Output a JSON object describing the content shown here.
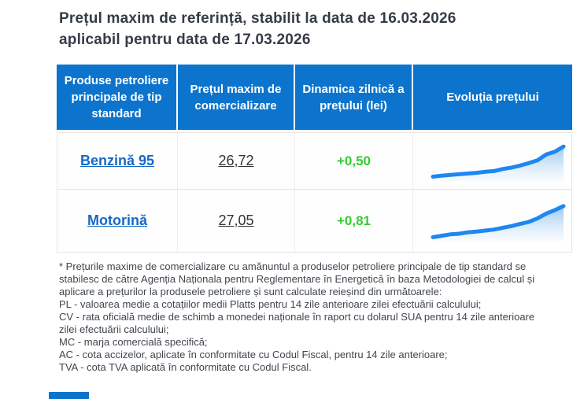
{
  "page": {
    "title_line1": "Prețul maxim de referință, stabilit la data de 16.03.2026",
    "title_line2": "aplicabil pentru data de 17.03.2026"
  },
  "table": {
    "headers": [
      "Produse petroliere principale de tip standard",
      "Prețul maxim de comercializare",
      "Dinamica zilnică a prețului (lei)",
      "Evoluția prețului"
    ],
    "rows": [
      {
        "product": "Benzină 95",
        "price": "26,72",
        "change": "+0,50"
      },
      {
        "product": "Motorină",
        "price": "27,05",
        "change": "+0,81"
      }
    ]
  },
  "footnotes": [
    "* Prețurile maxime de comercializare cu amănuntul a produselor petroliere principale de tip standard se stabilesc de către Agenția Naționala pentru Reglementare în Energetică în baza Metodologiei de calcul și aplicare a prețurilor la produsele petroliere și sunt calculate reieșind din următoarele:",
    "PL - valoarea medie a cotațiilor medii Platts pentru 14 zile anterioare zilei efectuării calculului;",
    "CV - rata oficială medie de schimb a monedei naționale în raport cu dolarul SUA pentru 14 zile anterioare zilei efectuării calculului;",
    "MC - marja comercială specifică;",
    "AC - cota accizelor, aplicate în conformitate cu Codul Fiscal, pentru 14 zile anterioare;",
    "TVA - cota TVA aplicată în conformitate cu Codul Fiscal."
  ],
  "colors": {
    "header_blue": "#0c74cc",
    "link_blue": "#1668c4",
    "positive_green": "#32cd32",
    "title_color": "#353c47",
    "spark_line": "#1e87f0",
    "spark_fill_top": "#97c8f0",
    "spark_fill_bottom": "#eef6fd"
  },
  "chart_data": [
    {
      "type": "area",
      "title": "Evoluția prețului — Benzină 95",
      "xlabel": "",
      "ylabel": "",
      "axes_visible": false,
      "ylim": [
        0,
        100
      ],
      "x": [
        1,
        2,
        3,
        4,
        5,
        6,
        7,
        8,
        9,
        10,
        11,
        12,
        13,
        14,
        15,
        16
      ],
      "values": [
        8,
        11,
        13,
        15,
        17,
        19,
        22,
        24,
        30,
        34,
        40,
        47,
        55,
        72,
        80,
        95
      ]
    },
    {
      "type": "area",
      "title": "Evoluția prețului — Motorină",
      "xlabel": "",
      "ylabel": "",
      "axes_visible": false,
      "ylim": [
        0,
        100
      ],
      "x": [
        1,
        2,
        3,
        4,
        5,
        6,
        7,
        8,
        9,
        10,
        11,
        12,
        13,
        14,
        15,
        16
      ],
      "values": [
        6,
        10,
        14,
        16,
        20,
        22,
        25,
        28,
        33,
        38,
        44,
        50,
        60,
        74,
        84,
        96
      ]
    }
  ]
}
